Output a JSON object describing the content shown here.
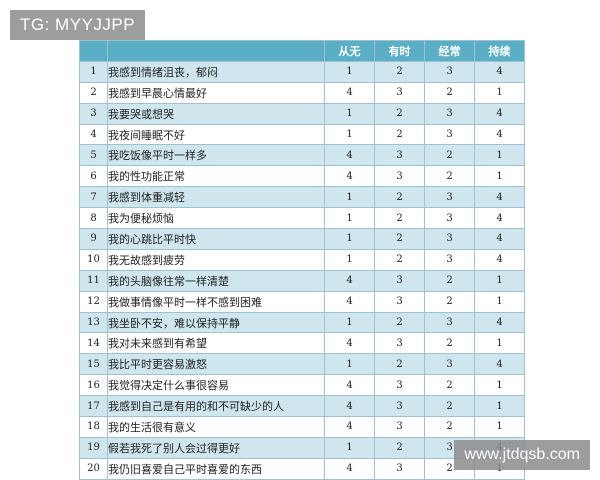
{
  "watermarks": {
    "top": "TG: MYYJJPP",
    "bottom": "www.jtdqsb.com"
  },
  "table": {
    "headers": [
      "",
      "",
      "从无",
      "有时",
      "经常",
      "持续"
    ],
    "rows": [
      {
        "num": "1",
        "item": "我感到情绪沮丧，郁闷",
        "scores": [
          "1",
          "2",
          "3",
          "4"
        ]
      },
      {
        "num": "2",
        "item": "我感到早晨心情最好",
        "scores": [
          "4",
          "3",
          "2",
          "1"
        ]
      },
      {
        "num": "3",
        "item": "我要哭或想哭",
        "scores": [
          "1",
          "2",
          "3",
          "4"
        ]
      },
      {
        "num": "4",
        "item": "我夜间睡眠不好",
        "scores": [
          "1",
          "2",
          "3",
          "4"
        ]
      },
      {
        "num": "5",
        "item": "我吃饭像平时一样多",
        "scores": [
          "4",
          "3",
          "2",
          "1"
        ]
      },
      {
        "num": "6",
        "item": "我的性功能正常",
        "scores": [
          "4",
          "3",
          "2",
          "1"
        ]
      },
      {
        "num": "7",
        "item": "我感到体重减轻",
        "scores": [
          "1",
          "2",
          "3",
          "4"
        ]
      },
      {
        "num": "8",
        "item": "我为便秘烦恼",
        "scores": [
          "1",
          "2",
          "3",
          "4"
        ]
      },
      {
        "num": "9",
        "item": "我的心跳比平时快",
        "scores": [
          "1",
          "2",
          "3",
          "4"
        ]
      },
      {
        "num": "10",
        "item": "我无故感到疲劳",
        "scores": [
          "1",
          "2",
          "3",
          "4"
        ]
      },
      {
        "num": "11",
        "item": "我的头脑像往常一样清楚",
        "scores": [
          "4",
          "3",
          "2",
          "1"
        ]
      },
      {
        "num": "12",
        "item": "我做事情像平时一样不感到困难",
        "scores": [
          "4",
          "3",
          "2",
          "1"
        ]
      },
      {
        "num": "13",
        "item": "我坐卧不安，难以保持平静",
        "scores": [
          "1",
          "2",
          "3",
          "4"
        ]
      },
      {
        "num": "14",
        "item": "我对未来感到有希望",
        "scores": [
          "4",
          "3",
          "2",
          "1"
        ]
      },
      {
        "num": "15",
        "item": "我比平时更容易激怒",
        "scores": [
          "1",
          "2",
          "3",
          "4"
        ]
      },
      {
        "num": "16",
        "item": "我觉得决定什么事很容易",
        "scores": [
          "4",
          "3",
          "2",
          "1"
        ]
      },
      {
        "num": "17",
        "item": "我感到自己是有用的和不可缺少的人",
        "scores": [
          "4",
          "3",
          "2",
          "1"
        ]
      },
      {
        "num": "18",
        "item": "我的生活很有意义",
        "scores": [
          "4",
          "3",
          "2",
          "1"
        ]
      },
      {
        "num": "19",
        "item": "假若我死了别人会过得更好",
        "scores": [
          "1",
          "2",
          "3",
          "4"
        ]
      },
      {
        "num": "20",
        "item": "我仍旧喜爱自己平时喜爱的东西",
        "scores": [
          "4",
          "3",
          "2",
          "1"
        ]
      }
    ]
  }
}
